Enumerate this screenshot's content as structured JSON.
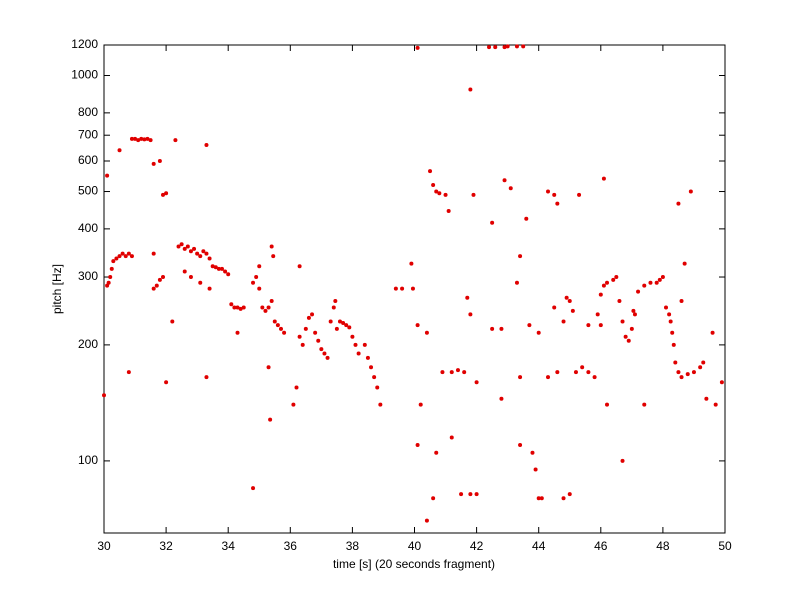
{
  "chart_data": {
    "type": "scatter",
    "xlabel": "time [s] (20 seconds fragment)",
    "ylabel": "pitch [Hz]",
    "color": "#e00000",
    "log_y": true,
    "xlim": [
      30,
      50
    ],
    "ylim": [
      65,
      1200
    ],
    "xticks": [
      30,
      32,
      34,
      36,
      38,
      40,
      42,
      44,
      46,
      48,
      50
    ],
    "yticks": [
      100,
      200,
      300,
      400,
      500,
      600,
      700,
      800,
      1000,
      1200
    ],
    "x": [
      30.0,
      30.1,
      30.15,
      30.2,
      30.25,
      30.3,
      30.4,
      30.5,
      30.6,
      30.7,
      30.8,
      30.9,
      30.1,
      30.5,
      30.9,
      31.0,
      31.1,
      31.2,
      31.3,
      31.4,
      31.5,
      31.6,
      31.8,
      31.9,
      32.0,
      32.3,
      33.3,
      30.8,
      32.0,
      33.3,
      31.6,
      31.7,
      31.8,
      31.9,
      31.6,
      32.2,
      32.4,
      32.5,
      32.6,
      32.7,
      32.8,
      32.9,
      33.0,
      33.1,
      33.2,
      33.3,
      33.4,
      32.6,
      32.8,
      33.1,
      33.4,
      33.5,
      33.6,
      33.7,
      33.8,
      33.9,
      34.0,
      34.1,
      34.2,
      34.3,
      34.4,
      34.5,
      34.3,
      34.8,
      34.8,
      34.9,
      35.0,
      35.0,
      35.1,
      35.2,
      35.3,
      35.4,
      35.4,
      35.45,
      35.3,
      35.35,
      35.5,
      35.6,
      35.7,
      35.8,
      36.1,
      36.3,
      36.2,
      36.3,
      36.4,
      36.5,
      36.6,
      36.7,
      36.8,
      36.9,
      37.0,
      37.1,
      37.2,
      37.3,
      37.4,
      37.45,
      37.5,
      37.6,
      37.7,
      37.8,
      37.9,
      38.0,
      38.1,
      38.2,
      38.4,
      38.5,
      38.6,
      38.7,
      38.8,
      38.9,
      39.4,
      39.6,
      39.9,
      39.95,
      40.1,
      40.1,
      40.1,
      40.2,
      40.4,
      40.5,
      40.6,
      40.4,
      40.7,
      40.8,
      41.0,
      40.6,
      41.1,
      40.9,
      41.2,
      41.4,
      41.6,
      40.7,
      41.2,
      41.7,
      41.8,
      41.8,
      41.5,
      41.8,
      42.0,
      42.0,
      41.9,
      42.4,
      42.6,
      42.9,
      43.0,
      43.3,
      43.5,
      42.5,
      42.5,
      42.8,
      42.8,
      42.9,
      43.1,
      43.4,
      43.3,
      43.4,
      43.4,
      43.6,
      43.7,
      43.8,
      43.9,
      44.0,
      44.1,
      44.0,
      44.3,
      44.5,
      44.5,
      44.3,
      44.6,
      44.6,
      44.8,
      45.0,
      44.9,
      45.0,
      45.1,
      44.8,
      45.2,
      45.4,
      45.6,
      45.8,
      45.3,
      45.6,
      45.9,
      46.1,
      46.0,
      46.2,
      46.7,
      46.0,
      46.1,
      46.2,
      46.4,
      46.5,
      46.6,
      46.7,
      46.8,
      46.9,
      47.0,
      47.05,
      47.1,
      47.2,
      47.4,
      47.6,
      47.8,
      47.9,
      48.0,
      47.4,
      48.1,
      48.2,
      48.25,
      48.3,
      48.35,
      48.4,
      48.5,
      48.6,
      48.8,
      49.0,
      49.2,
      49.3,
      48.5,
      48.9,
      48.7,
      48.6,
      49.4,
      49.6,
      49.7,
      49.9
    ],
    "values": [
      148,
      285,
      290,
      300,
      315,
      330,
      335,
      340,
      345,
      340,
      345,
      340,
      550,
      640,
      685,
      685,
      680,
      685,
      683,
      685,
      680,
      590,
      600,
      490,
      495,
      680,
      660,
      170,
      160,
      165,
      280,
      285,
      295,
      300,
      345,
      230,
      360,
      365,
      355,
      360,
      350,
      355,
      345,
      340,
      350,
      345,
      335,
      310,
      300,
      290,
      280,
      320,
      318,
      315,
      315,
      310,
      305,
      255,
      250,
      250,
      248,
      250,
      215,
      85,
      290,
      300,
      320,
      280,
      250,
      245,
      250,
      260,
      360,
      340,
      175,
      128,
      230,
      225,
      220,
      215,
      140,
      320,
      155,
      210,
      200,
      220,
      235,
      240,
      215,
      205,
      195,
      190,
      185,
      230,
      250,
      260,
      220,
      230,
      228,
      225,
      222,
      210,
      200,
      190,
      200,
      185,
      175,
      165,
      155,
      140,
      280,
      280,
      325,
      280,
      1180,
      225,
      110,
      140,
      215,
      565,
      80,
      70,
      500,
      495,
      490,
      520,
      445,
      170,
      170,
      172,
      170,
      105,
      115,
      265,
      920,
      240,
      82,
      82,
      82,
      160,
      490,
      1185,
      1185,
      1185,
      1190,
      1190,
      1190,
      415,
      220,
      220,
      145,
      535,
      510,
      340,
      290,
      165,
      110,
      425,
      225,
      105,
      95,
      80,
      80,
      215,
      500,
      490,
      250,
      165,
      170,
      465,
      80,
      82,
      265,
      260,
      245,
      230,
      170,
      175,
      170,
      165,
      490,
      225,
      240,
      540,
      225,
      140,
      100,
      270,
      285,
      290,
      295,
      300,
      260,
      230,
      210,
      205,
      220,
      245,
      240,
      275,
      285,
      290,
      290,
      295,
      300,
      140,
      250,
      240,
      230,
      215,
      200,
      180,
      170,
      165,
      168,
      170,
      175,
      180,
      465,
      500,
      325,
      260,
      145,
      215,
      140,
      160
    ]
  }
}
